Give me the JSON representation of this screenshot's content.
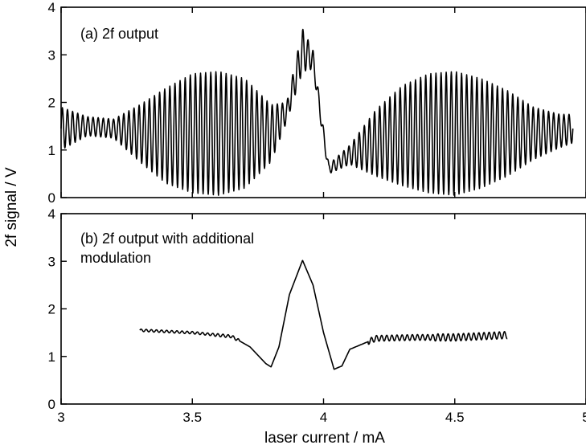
{
  "figure": {
    "ylabel": "2f signal / V",
    "xlabel": "laser current / mA"
  },
  "chart_data": [
    {
      "type": "line",
      "panel": "top",
      "annotation": "(a) 2f output",
      "xlim": [
        3,
        5
      ],
      "ylim": [
        0,
        4
      ],
      "xticks": [
        3,
        3.5,
        4,
        4.5,
        5
      ],
      "yticks": [
        0,
        1,
        2,
        3,
        4
      ],
      "yticklabels": [
        "0",
        "1",
        "2",
        "3",
        "4"
      ],
      "series": [
        {
          "x_range": [
            3.0,
            4.95
          ],
          "description_points": {
            "x": [
              3.0,
              3.1,
              3.2,
              3.3,
              3.4,
              3.5,
              3.6,
              3.7,
              3.8,
              3.86,
              3.92,
              3.96,
              4.0,
              4.02,
              4.1,
              4.2,
              4.3,
              4.4,
              4.5,
              4.6,
              4.7,
              4.8,
              4.9,
              4.95
            ],
            "center": [
              1.45,
              1.5,
              1.45,
              1.35,
              1.3,
              1.35,
              1.35,
              1.35,
              1.35,
              1.8,
              3.1,
              2.9,
              1.3,
              0.6,
              0.9,
              1.15,
              1.3,
              1.35,
              1.35,
              1.35,
              1.35,
              1.35,
              1.4,
              1.45
            ],
            "amplitude": [
              0.45,
              0.2,
              0.2,
              0.6,
              1.0,
              1.25,
              1.3,
              1.15,
              0.6,
              0.2,
              0.45,
              0.2,
              0.15,
              0.1,
              0.2,
              0.7,
              1.05,
              1.25,
              1.3,
              1.15,
              0.9,
              0.55,
              0.35,
              0.3
            ]
          },
          "fringe_period_mA": 0.0195
        }
      ]
    },
    {
      "type": "line",
      "panel": "bottom",
      "annotation_lines": [
        "(b) 2f output with additional",
        "modulation"
      ],
      "xlim": [
        3,
        5
      ],
      "ylim": [
        0,
        4
      ],
      "xticks": [
        3,
        3.5,
        4,
        4.5,
        5
      ],
      "xticklabels": [
        "3",
        "3.5",
        "4",
        "4.5",
        "5"
      ],
      "yticks": [
        0,
        1,
        2,
        3,
        4
      ],
      "yticklabels": [
        "0",
        "1",
        "2",
        "3",
        "4"
      ],
      "series": [
        {
          "x_range": [
            3.3,
            4.7
          ],
          "description_points": {
            "x": [
              3.3,
              3.5,
              3.65,
              3.72,
              3.78,
              3.8,
              3.83,
              3.87,
              3.92,
              3.96,
              4.0,
              4.04,
              4.07,
              4.1,
              4.2,
              4.35,
              4.5,
              4.7
            ],
            "y": [
              1.55,
              1.5,
              1.42,
              1.2,
              0.85,
              0.78,
              1.2,
              2.3,
              3.02,
              2.5,
              1.5,
              0.73,
              0.8,
              1.15,
              1.38,
              1.4,
              1.4,
              1.45
            ]
          },
          "ripple_amplitude": [
            0.05,
            0.06,
            0.08,
            0.12,
            0.15
          ]
        }
      ]
    }
  ]
}
